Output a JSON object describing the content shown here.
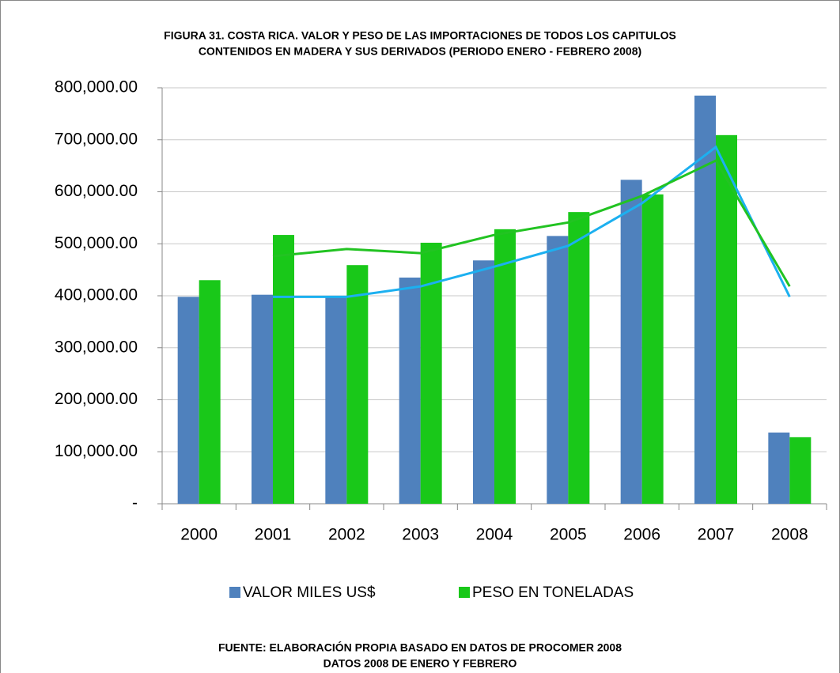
{
  "chart_data": {
    "type": "bar",
    "title": [
      "FIGURA 31. COSTA RICA. VALOR Y PESO DE LAS IMPORTACIONES DE TODOS LOS CAPITULOS",
      "CONTENIDOS EN MADERA Y SUS DERIVADOS (PERIODO ENERO - FEBRERO 2008)"
    ],
    "categories": [
      "2000",
      "2001",
      "2002",
      "2003",
      "2004",
      "2005",
      "2006",
      "2007",
      "2008"
    ],
    "series": [
      {
        "name": "VALOR MILES US$",
        "color": "#4f81bd",
        "values": [
          398000,
          402000,
          400000,
          435000,
          468000,
          515000,
          623000,
          785000,
          137000
        ]
      },
      {
        "name": "PESO EN TONELADAS",
        "color": "#19c819",
        "values": [
          430000,
          517000,
          459000,
          502000,
          528000,
          561000,
          595000,
          709000,
          128000
        ]
      }
    ],
    "trendlines": [
      {
        "color": "#1cb0f0",
        "values": [
          null,
          398000,
          398000,
          418000,
          456000,
          496000,
          578000,
          686000,
          398000
        ]
      },
      {
        "color": "#22c322",
        "values": [
          null,
          476000,
          490000,
          482000,
          517000,
          541000,
          592000,
          660000,
          418000
        ]
      }
    ],
    "ylim": [
      0,
      800000
    ],
    "yticks": [
      {
        "value": 0,
        "label": "-"
      },
      {
        "value": 100000,
        "label": "100,000.00"
      },
      {
        "value": 200000,
        "label": "200,000.00"
      },
      {
        "value": 300000,
        "label": "300,000.00"
      },
      {
        "value": 400000,
        "label": "400,000.00"
      },
      {
        "value": 500000,
        "label": "500,000.00"
      },
      {
        "value": 600000,
        "label": "600,000.00"
      },
      {
        "value": 700000,
        "label": "700,000.00"
      },
      {
        "value": 800000,
        "label": "800,000.00"
      }
    ],
    "grid": true,
    "legend": "bottom",
    "source": [
      "FUENTE: ELABORACIÓN PROPIA BASADO EN DATOS DE PROCOMER 2008",
      "DATOS 2008 DE ENERO Y FEBRERO"
    ]
  }
}
